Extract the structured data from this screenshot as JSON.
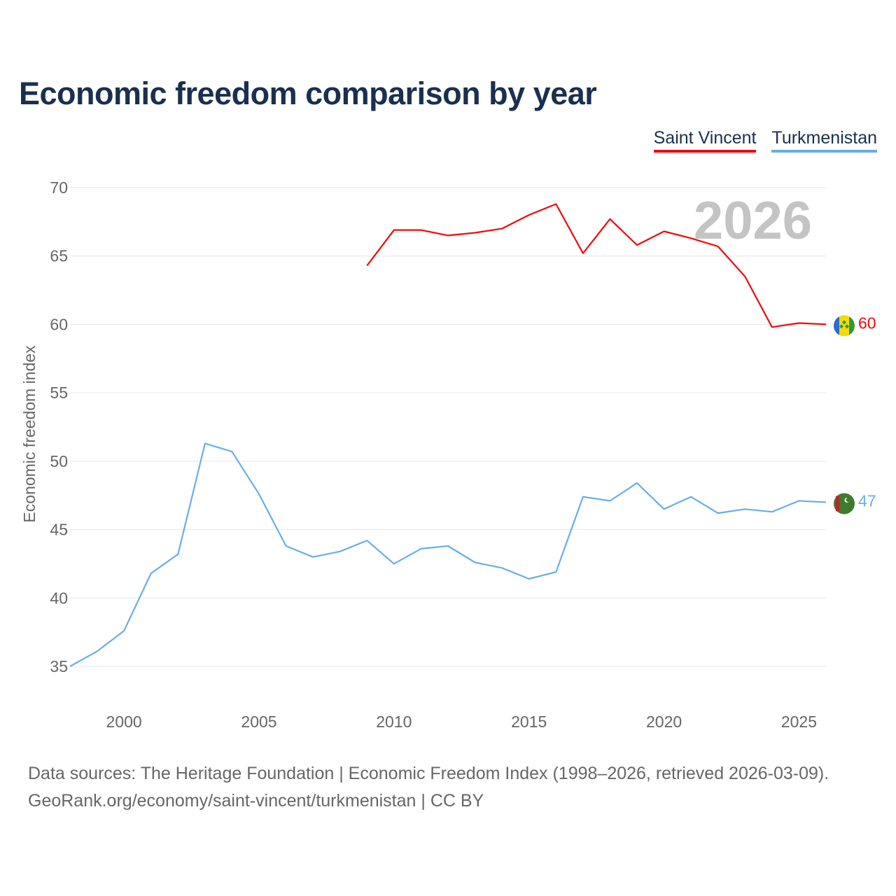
{
  "colors": {
    "saint_vincent": "#f00a0a",
    "turkmenistan": "#6aaee6",
    "title": "#1b2f4f",
    "grid": "#e6e6e6",
    "watermark": "#c4c4c4"
  },
  "legend": {
    "saint_vincent": "Saint Vincent",
    "turkmenistan": "Turkmenistan"
  },
  "footer": {
    "line1": "Data sources: The Heritage Foundation | Economic Freedom Index (1998–2026, retrieved 2026-03-09).",
    "line2": "GeoRank.org/economy/saint-vincent/turkmenistan | CC BY"
  },
  "chart_data": {
    "type": "line",
    "title": "Economic freedom comparison by year",
    "xlabel": "",
    "ylabel": "Economic freedom index",
    "year_label": "2026",
    "xlim": [
      1998,
      2026
    ],
    "ylim": [
      35,
      70
    ],
    "x_ticks": [
      2000,
      2005,
      2010,
      2015,
      2020,
      2025
    ],
    "y_ticks": [
      35,
      40,
      45,
      50,
      55,
      60,
      65,
      70
    ],
    "grid": true,
    "series": [
      {
        "name": "Saint Vincent",
        "color": "#f00a0a",
        "end_label": "60",
        "flag_icon": "saint-vincent-flag-icon",
        "x": [
          2009,
          2010,
          2011,
          2012,
          2013,
          2014,
          2015,
          2016,
          2017,
          2018,
          2019,
          2020,
          2021,
          2022,
          2023,
          2024,
          2025,
          2026
        ],
        "values": [
          64.3,
          66.9,
          66.9,
          66.5,
          66.7,
          67.0,
          68.0,
          68.8,
          65.2,
          67.7,
          65.8,
          66.8,
          66.3,
          65.7,
          63.5,
          59.8,
          60.1,
          60.0
        ]
      },
      {
        "name": "Turkmenistan",
        "color": "#6aaee6",
        "end_label": "47",
        "flag_icon": "turkmenistan-flag-icon",
        "x": [
          1998,
          1999,
          2000,
          2001,
          2002,
          2003,
          2004,
          2005,
          2006,
          2007,
          2008,
          2009,
          2010,
          2011,
          2012,
          2013,
          2014,
          2015,
          2016,
          2017,
          2018,
          2019,
          2020,
          2021,
          2022,
          2023,
          2024,
          2025,
          2026
        ],
        "values": [
          35.0,
          36.1,
          37.6,
          41.8,
          43.2,
          51.3,
          50.7,
          47.6,
          43.8,
          43.0,
          43.4,
          44.2,
          42.5,
          43.6,
          43.8,
          42.6,
          42.2,
          41.4,
          41.9,
          47.4,
          47.1,
          48.4,
          46.5,
          47.4,
          46.2,
          46.5,
          46.3,
          47.1,
          47.0
        ]
      }
    ]
  }
}
